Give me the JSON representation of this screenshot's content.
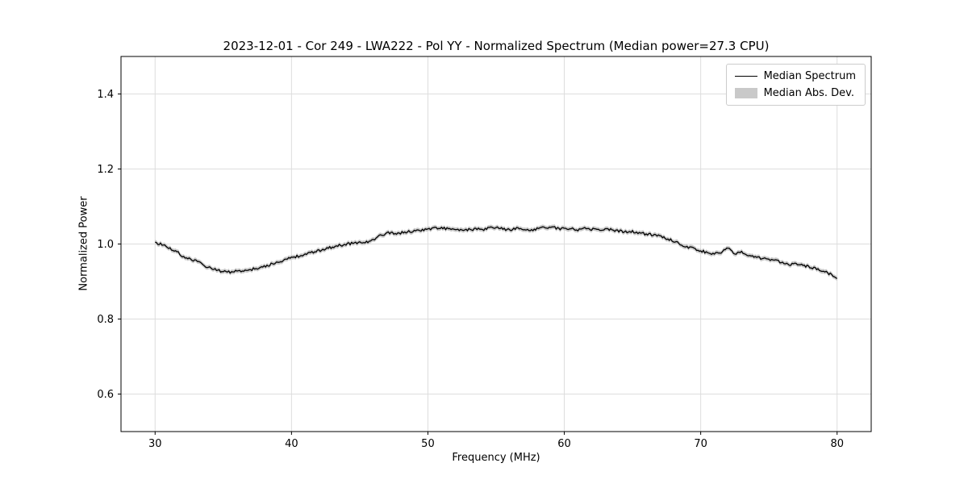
{
  "chart_data": {
    "type": "line",
    "title": "2023-12-01 - Cor 249 - LWA222 - Pol YY - Normalized Spectrum (Median power=27.3 CPU)",
    "xlabel": "Frequency (MHz)",
    "ylabel": "Normalized Power",
    "xlim": [
      27.5,
      82.5
    ],
    "ylim": [
      0.5,
      1.5
    ],
    "x_ticks": [
      30,
      40,
      50,
      60,
      70,
      80
    ],
    "x_tick_labels": [
      "30",
      "40",
      "50",
      "60",
      "70",
      "80"
    ],
    "y_ticks": [
      0.6,
      0.8,
      1.0,
      1.2,
      1.4
    ],
    "y_tick_labels": [
      "0.6",
      "0.8",
      "1.0",
      "1.2",
      "1.4"
    ],
    "grid": true,
    "colors": {
      "line": "#000000",
      "band": "#c9c9c9",
      "grid": "#dddddd",
      "spine": "#000000"
    },
    "legend": {
      "position": "upper right",
      "entries": [
        {
          "label": "Median Spectrum",
          "type": "line",
          "color": "#000000"
        },
        {
          "label": "Median Abs. Dev.",
          "type": "patch",
          "color": "#c9c9c9"
        }
      ]
    },
    "mad_band": 0.006,
    "noise_amplitude": 0.0035,
    "series": [
      {
        "name": "Median Spectrum",
        "x": [
          30,
          30.5,
          31,
          31.5,
          32,
          32.5,
          33,
          33.5,
          34,
          34.5,
          35,
          35.5,
          36,
          36.5,
          37,
          37.5,
          38,
          38.5,
          39,
          39.5,
          40,
          40.5,
          41,
          41.5,
          42,
          42.5,
          43,
          43.5,
          44,
          44.5,
          45,
          45.5,
          46,
          46.5,
          47,
          47.5,
          48,
          48.5,
          49,
          49.5,
          50,
          50.5,
          51,
          51.5,
          52,
          52.5,
          53,
          53.5,
          54,
          54.5,
          55,
          55.5,
          56,
          56.5,
          57,
          57.5,
          58,
          58.5,
          59,
          59.5,
          60,
          60.5,
          61,
          61.5,
          62,
          62.5,
          63,
          63.5,
          64,
          64.5,
          65,
          65.5,
          66,
          66.5,
          67,
          67.5,
          68,
          68.5,
          69,
          69.5,
          70,
          70.5,
          71,
          71.5,
          72,
          72.5,
          73,
          73.5,
          74,
          74.5,
          75,
          75.5,
          76,
          76.5,
          77,
          77.5,
          78,
          78.5,
          79,
          79.5,
          80
        ],
        "y": [
          1.005,
          0.998,
          0.99,
          0.982,
          0.968,
          0.96,
          0.955,
          0.945,
          0.937,
          0.93,
          0.926,
          0.925,
          0.927,
          0.928,
          0.932,
          0.936,
          0.94,
          0.946,
          0.952,
          0.958,
          0.963,
          0.968,
          0.972,
          0.977,
          0.982,
          0.988,
          0.992,
          0.996,
          1.0,
          1.002,
          1.004,
          1.006,
          1.01,
          1.022,
          1.03,
          1.028,
          1.03,
          1.032,
          1.035,
          1.037,
          1.04,
          1.042,
          1.043,
          1.04,
          1.038,
          1.036,
          1.038,
          1.04,
          1.038,
          1.042,
          1.045,
          1.04,
          1.038,
          1.041,
          1.039,
          1.037,
          1.041,
          1.044,
          1.045,
          1.042,
          1.04,
          1.042,
          1.038,
          1.042,
          1.04,
          1.037,
          1.04,
          1.038,
          1.035,
          1.032,
          1.033,
          1.03,
          1.026,
          1.025,
          1.022,
          1.015,
          1.008,
          1.0,
          0.993,
          0.987,
          0.982,
          0.977,
          0.975,
          0.978,
          0.99,
          0.972,
          0.978,
          0.968,
          0.964,
          0.962,
          0.958,
          0.955,
          0.952,
          0.946,
          0.948,
          0.944,
          0.938,
          0.933,
          0.928,
          0.92,
          0.908
        ]
      }
    ]
  }
}
